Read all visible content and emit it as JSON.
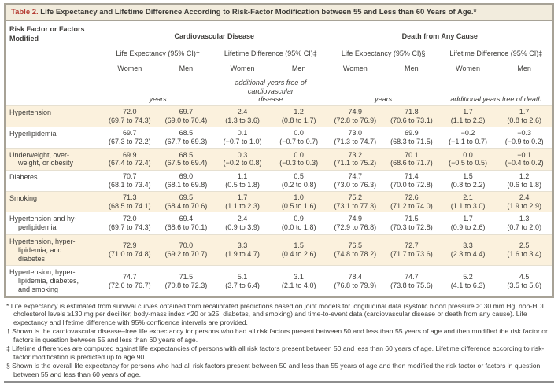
{
  "table": {
    "title_prefix": "Table 2.",
    "title": " Life Expectancy and Lifetime Difference According to Risk-Factor Modification between 55 and Less than 60 Years of Age.*",
    "row_header": "Risk Factor or Factors Modified",
    "groups": [
      {
        "label": "Cardiovascular Disease"
      },
      {
        "label": "Death from Any Cause"
      }
    ],
    "subheads": [
      "Life Expectancy (95% CI)†",
      "Lifetime Difference (95% CI)‡",
      "Life Expectancy (95% CI)§",
      "Lifetime Difference (95% CI)‡"
    ],
    "sex_headers": [
      "Women",
      "Men",
      "Women",
      "Men",
      "Women",
      "Men",
      "Women",
      "Men"
    ],
    "units": [
      "years",
      "additional years free of cardiovascular\ndisease",
      "years",
      "additional years free of death"
    ],
    "rows": [
      {
        "label": "Hypertension",
        "cells": [
          {
            "v": "72.0",
            "ci": "(69.7 to 74.3)"
          },
          {
            "v": "69.7",
            "ci": "(69.0 to 70.4)"
          },
          {
            "v": "2.4",
            "ci": "(1.3 to 3.6)"
          },
          {
            "v": "1.2",
            "ci": "(0.8 to 1.7)"
          },
          {
            "v": "74.9",
            "ci": "(72.8 to 76.9)"
          },
          {
            "v": "71.8",
            "ci": "(70.6 to 73.1)"
          },
          {
            "v": "1.7",
            "ci": "(1.1 to 2.3)"
          },
          {
            "v": "1.7",
            "ci": "(0.8 to 2.6)"
          }
        ]
      },
      {
        "label": "Hyperlipidemia",
        "cells": [
          {
            "v": "69.7",
            "ci": "(67.3 to 72.2)"
          },
          {
            "v": "68.5",
            "ci": "(67.7 to 69.3)"
          },
          {
            "v": "0.1",
            "ci": "(−0.7 to 1.0)"
          },
          {
            "v": "0.0",
            "ci": "(−0.7 to 0.7)"
          },
          {
            "v": "73.0",
            "ci": "(71.3 to 74.7)"
          },
          {
            "v": "69.9",
            "ci": "(68.3 to 71.5)"
          },
          {
            "v": "−0.2",
            "ci": "(−1.1 to 0.7)"
          },
          {
            "v": "−0.3",
            "ci": "(−0.9 to 0.2)"
          }
        ]
      },
      {
        "label": "Underweight, over-\nweight, or obesity",
        "cells": [
          {
            "v": "69.9",
            "ci": "(67.4 to 72.4)"
          },
          {
            "v": "68.5",
            "ci": "(67.5 to 69.4)"
          },
          {
            "v": "0.3",
            "ci": "(−0.2 to 0.8)"
          },
          {
            "v": "0.0",
            "ci": "(−0.3 to 0.3)"
          },
          {
            "v": "73.2",
            "ci": "(71.1 to 75.2)"
          },
          {
            "v": "70.1",
            "ci": "(68.6 to 71.7)"
          },
          {
            "v": "0.0",
            "ci": "(−0.5 to 0.5)"
          },
          {
            "v": "−0.1",
            "ci": "(−0.4 to 0.2)"
          }
        ]
      },
      {
        "label": "Diabetes",
        "cells": [
          {
            "v": "70.7",
            "ci": "(68.1 to 73.4)"
          },
          {
            "v": "69.0",
            "ci": "(68.1 to 69.8)"
          },
          {
            "v": "1.1",
            "ci": "(0.5 to 1.8)"
          },
          {
            "v": "0.5",
            "ci": "(0.2 to 0.8)"
          },
          {
            "v": "74.7",
            "ci": "(73.0 to 76.3)"
          },
          {
            "v": "71.4",
            "ci": "(70.0 to 72.8)"
          },
          {
            "v": "1.5",
            "ci": "(0.8 to 2.2)"
          },
          {
            "v": "1.2",
            "ci": "(0.6 to 1.8)"
          }
        ]
      },
      {
        "label": "Smoking",
        "cells": [
          {
            "v": "71.3",
            "ci": "(68.5 to 74.1)"
          },
          {
            "v": "69.5",
            "ci": "(68.4 to 70.6)"
          },
          {
            "v": "1.7",
            "ci": "(1.1 to 2.3)"
          },
          {
            "v": "1.0",
            "ci": "(0.5 to 1.6)"
          },
          {
            "v": "75.2",
            "ci": "(73.1 to 77.3)"
          },
          {
            "v": "72.6",
            "ci": "(71.2 to 74.0)"
          },
          {
            "v": "2.1",
            "ci": "(1.1 to 3.0)"
          },
          {
            "v": "2.4",
            "ci": "(1.9 to 2.9)"
          }
        ]
      },
      {
        "label": "Hypertension and hy-\nperlipidemia",
        "cells": [
          {
            "v": "72.0",
            "ci": "(69.7 to 74.3)"
          },
          {
            "v": "69.4",
            "ci": "(68.6 to 70.1)"
          },
          {
            "v": "2.4",
            "ci": "(0.9 to 3.9)"
          },
          {
            "v": "0.9",
            "ci": "(0.0 to 1.8)"
          },
          {
            "v": "74.9",
            "ci": "(72.9 to 76.8)"
          },
          {
            "v": "71.5",
            "ci": "(70.3 to 72.8)"
          },
          {
            "v": "1.7",
            "ci": "(0.9 to 2.6)"
          },
          {
            "v": "1.3",
            "ci": "(0.7 to 2.0)"
          }
        ]
      },
      {
        "label": "Hypertension, hyper-\nlipidemia, and\ndiabetes",
        "cells": [
          {
            "v": "72.9",
            "ci": "(71.0 to 74.8)"
          },
          {
            "v": "70.0",
            "ci": "(69.2 to 70.7)"
          },
          {
            "v": "3.3",
            "ci": "(1.9 to 4.7)"
          },
          {
            "v": "1.5",
            "ci": "(0.4 to 2.6)"
          },
          {
            "v": "76.5",
            "ci": "(74.8 to 78.2)"
          },
          {
            "v": "72.7",
            "ci": "(71.7 to 73.6)"
          },
          {
            "v": "3.3",
            "ci": "(2.3 to 4.4)"
          },
          {
            "v": "2.5",
            "ci": "(1.6 to 3.4)"
          }
        ]
      },
      {
        "label": "Hypertension, hyper-\nlipidemia, diabetes,\nand smoking",
        "cells": [
          {
            "v": "74.7",
            "ci": "(72.6 to 76.7)"
          },
          {
            "v": "71.5",
            "ci": "(70.8 to 72.3)"
          },
          {
            "v": "5.1",
            "ci": "(3.7 to 6.4)"
          },
          {
            "v": "3.1",
            "ci": "(2.1 to 4.0)"
          },
          {
            "v": "78.4",
            "ci": "(76.8 to 79.9)"
          },
          {
            "v": "74.7",
            "ci": "(73.8 to 75.6)"
          },
          {
            "v": "5.2",
            "ci": "(4.1 to 6.3)"
          },
          {
            "v": "4.5",
            "ci": "(3.5 to 5.6)"
          }
        ]
      }
    ]
  },
  "footnotes": [
    {
      "symbol": "*",
      "text": " Life expectancy is estimated from survival curves obtained from recalibrated predictions based on joint models for longitudinal data (systolic blood pressure ≥130 mm Hg, non-HDL cholesterol levels ≥130 mg per deciliter, body-mass index <20 or ≥25, diabetes, and smoking) and time-to-event data (cardiovascular disease or death from any cause). Life expectancy and lifetime difference with 95% confidence intervals are provided."
    },
    {
      "symbol": "†",
      "text": " Shown is the cardiovascular disease–free life expectancy for persons who had all risk factors present between 50 and less than 55 years of age and then modified the risk factor or factors in question between 55 and less than 60 years of age."
    },
    {
      "symbol": "‡",
      "text": " Lifetime differences are computed against life expectancies of persons with all risk factors present between 50 and less than 60 years of age. Lifetime difference according to risk-factor modification is predicted up to age 90."
    },
    {
      "symbol": "§",
      "text": " Shown is the overall life expectancy for persons who had all risk factors present between 50 and less than 55 years of age and then modified the risk factor or factors in question between 55 and less than 60 years of age."
    }
  ],
  "colors": {
    "accent_red": "#b43a32",
    "title_bar_bg": "#f2ecdd",
    "row_stripe": "#fbf1dd",
    "border_gray": "#a7a296"
  }
}
